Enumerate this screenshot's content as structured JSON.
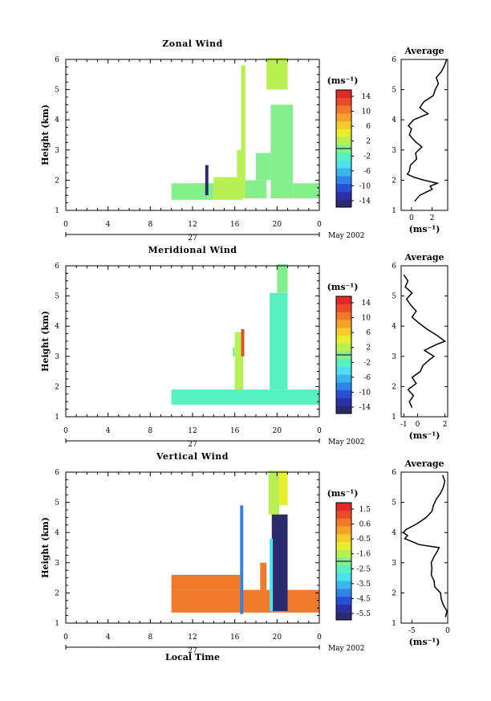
{
  "chart_data": [
    {
      "type": "heatmap",
      "title": "Zonal Wind",
      "ylabel": "Height (km)",
      "xticks": [
        "0",
        "4",
        "8",
        "12",
        "16",
        "20",
        "0"
      ],
      "yticks": [
        "1",
        "2",
        "3",
        "4",
        "5",
        "6"
      ],
      "date_row": {
        "day": "27",
        "month": "May 2002"
      },
      "colorbar": {
        "unit": "(ms⁻¹)",
        "ticks": [
          "14",
          "10",
          "6",
          "2",
          "-2",
          "-6",
          "-10",
          "-14"
        ]
      },
      "data_regions": [
        {
          "x": [
            10.0,
            14.0
          ],
          "y": [
            1.35,
            1.9
          ],
          "value": 0
        },
        {
          "x": [
            14.0,
            16.7
          ],
          "y": [
            1.35,
            2.1
          ],
          "value": 2
        },
        {
          "x": [
            16.2,
            16.7
          ],
          "y": [
            2.1,
            3.0
          ],
          "value": 2
        },
        {
          "x": [
            16.6,
            17.0
          ],
          "y": [
            1.4,
            5.8
          ],
          "value": 3
        },
        {
          "x": [
            17.0,
            19.0
          ],
          "y": [
            1.4,
            2.0
          ],
          "value": 1
        },
        {
          "x": [
            18.0,
            19.4
          ],
          "y": [
            2.0,
            2.9
          ],
          "value": -1
        },
        {
          "x": [
            19.4,
            21.5
          ],
          "y": [
            1.4,
            4.5
          ],
          "value": 0
        },
        {
          "x": [
            19.0,
            21.0
          ],
          "y": [
            5.0,
            6.05
          ],
          "value": 2
        },
        {
          "x": [
            21.5,
            24.0
          ],
          "y": [
            1.4,
            1.9
          ],
          "value": 0
        },
        {
          "x": [
            13.2,
            13.5
          ],
          "y": [
            1.5,
            2.5
          ],
          "value": -14
        }
      ],
      "average": {
        "title": "Average",
        "xlabel": "(ms⁻¹)",
        "xticks": [
          "0",
          "2"
        ],
        "yticks": [
          "1",
          "2",
          "3",
          "4",
          "5",
          "6"
        ],
        "xlim": [
          -1,
          3.5
        ],
        "profile": {
          "height": [
            1.3,
            1.5,
            1.7,
            1.8,
            1.9,
            2.0,
            2.1,
            2.2,
            2.3,
            2.5,
            2.7,
            2.9,
            3.1,
            3.3,
            3.5,
            3.7,
            3.8,
            4.0,
            4.2,
            4.4,
            4.6,
            4.8,
            5.0,
            5.2,
            5.4,
            5.6,
            5.8,
            6.0
          ],
          "value": [
            0.3,
            0.8,
            2.0,
            1.8,
            2.5,
            1.2,
            0.2,
            -0.4,
            -0.2,
            -0.1,
            0.5,
            0.4,
            1.0,
            0.3,
            -0.2,
            0.0,
            -0.3,
            0.2,
            1.6,
            0.8,
            1.2,
            2.1,
            2.3,
            2.6,
            2.4,
            2.9,
            3.2,
            3.4
          ]
        }
      }
    },
    {
      "type": "heatmap",
      "title": "Meridional Wind",
      "ylabel": "Height (km)",
      "xticks": [
        "0",
        "4",
        "8",
        "12",
        "16",
        "20",
        "0"
      ],
      "yticks": [
        "1",
        "2",
        "3",
        "4",
        "5",
        "6"
      ],
      "date_row": {
        "day": "27",
        "month": "May 2002"
      },
      "colorbar": {
        "unit": "(ms⁻¹)",
        "ticks": [
          "14",
          "10",
          "6",
          "2",
          "-2",
          "-6",
          "-10",
          "-14"
        ]
      },
      "data_regions": [
        {
          "x": [
            10.0,
            24.0
          ],
          "y": [
            1.4,
            1.9
          ],
          "value": -2
        },
        {
          "x": [
            16.0,
            16.8
          ],
          "y": [
            1.9,
            3.8
          ],
          "value": 2
        },
        {
          "x": [
            19.3,
            21.0
          ],
          "y": [
            1.9,
            5.1
          ],
          "value": -2
        },
        {
          "x": [
            20.0,
            21.0
          ],
          "y": [
            5.1,
            6.05
          ],
          "value": -1
        },
        {
          "x": [
            16.6,
            16.9
          ],
          "y": [
            3.0,
            3.9
          ],
          "value": 12
        },
        {
          "x": [
            15.8,
            16.0
          ],
          "y": [
            3.0,
            3.3
          ],
          "value": 0
        }
      ],
      "average": {
        "title": "Average",
        "xlabel": "(ms⁻¹)",
        "xticks": [
          "-1",
          "0",
          "2"
        ],
        "yticks": [
          "1",
          "2",
          "3",
          "4",
          "5",
          "6"
        ],
        "xlim": [
          -1.2,
          2.2
        ],
        "profile": {
          "height": [
            1.3,
            1.5,
            1.7,
            1.9,
            2.1,
            2.3,
            2.5,
            2.7,
            2.9,
            3.0,
            3.2,
            3.4,
            3.5,
            3.7,
            3.9,
            4.1,
            4.3,
            4.5,
            4.7,
            4.9,
            5.1,
            5.3,
            5.5,
            5.7
          ],
          "value": [
            -0.4,
            -0.6,
            -0.3,
            -0.7,
            -0.1,
            -0.4,
            0.2,
            0.4,
            0.9,
            1.2,
            0.5,
            1.4,
            2.0,
            1.4,
            0.7,
            0.1,
            -0.4,
            -0.1,
            -0.5,
            -0.8,
            -0.4,
            -0.9,
            -0.7,
            -1.0
          ]
        }
      }
    },
    {
      "type": "heatmap",
      "title": "Vertical Wind",
      "ylabel": "Height (km)",
      "xlabel": "Local Time",
      "xticks": [
        "0",
        "4",
        "8",
        "12",
        "16",
        "20",
        "0"
      ],
      "yticks": [
        "1",
        "2",
        "3",
        "4",
        "5",
        "6"
      ],
      "date_row": {
        "day": "27",
        "month": "May 2002"
      },
      "colorbar": {
        "unit": "(ms⁻¹)",
        "ticks": [
          "1.5",
          "0.6",
          "-0.5",
          "-1.6",
          "-2.5",
          "-3.5",
          "-4.5",
          "-5.5"
        ]
      },
      "data_regions": [
        {
          "x": [
            10.0,
            24.0
          ],
          "y": [
            1.35,
            2.1
          ],
          "value": 0.4
        },
        {
          "x": [
            10.0,
            16.5
          ],
          "y": [
            2.1,
            2.6
          ],
          "value": 0.6
        },
        {
          "x": [
            18.4,
            19.0
          ],
          "y": [
            2.1,
            3.0
          ],
          "value": 0.5
        },
        {
          "x": [
            16.5,
            16.8
          ],
          "y": [
            1.3,
            4.9
          ],
          "value": -4.2
        },
        {
          "x": [
            19.5,
            21.0
          ],
          "y": [
            1.4,
            4.6
          ],
          "value": -5.8
        },
        {
          "x": [
            19.2,
            20.2
          ],
          "y": [
            4.6,
            6.05
          ],
          "value": -1.4
        },
        {
          "x": [
            20.2,
            21.0
          ],
          "y": [
            4.9,
            6.05
          ],
          "value": -1.0
        },
        {
          "x": [
            19.3,
            19.6
          ],
          "y": [
            1.4,
            3.8
          ],
          "value": -3.0
        }
      ],
      "average": {
        "title": "Average",
        "xlabel": "(ms⁻¹)",
        "xticks": [
          "-5",
          "0"
        ],
        "yticks": [
          "1",
          "2",
          "3",
          "4",
          "5",
          "6"
        ],
        "xlim": [
          -6.5,
          0
        ],
        "profile": {
          "height": [
            1.2,
            1.4,
            1.6,
            1.8,
            2.0,
            2.2,
            2.4,
            2.6,
            2.8,
            3.0,
            3.2,
            3.4,
            3.5,
            3.6,
            3.8,
            3.9,
            4.0,
            4.1,
            4.3,
            4.5,
            4.7,
            4.9,
            5.1,
            5.3,
            5.5,
            5.7,
            5.9
          ],
          "value": [
            -0.3,
            -0.1,
            -0.6,
            -0.9,
            -1.0,
            -1.8,
            -1.9,
            -2.3,
            -2.2,
            -2.3,
            -1.9,
            -1.4,
            -1.2,
            -4.0,
            -6.0,
            -5.6,
            -6.2,
            -5.8,
            -4.2,
            -3.0,
            -2.2,
            -2.0,
            -1.6,
            -1.0,
            -0.6,
            -0.4,
            -0.7
          ]
        }
      }
    }
  ]
}
